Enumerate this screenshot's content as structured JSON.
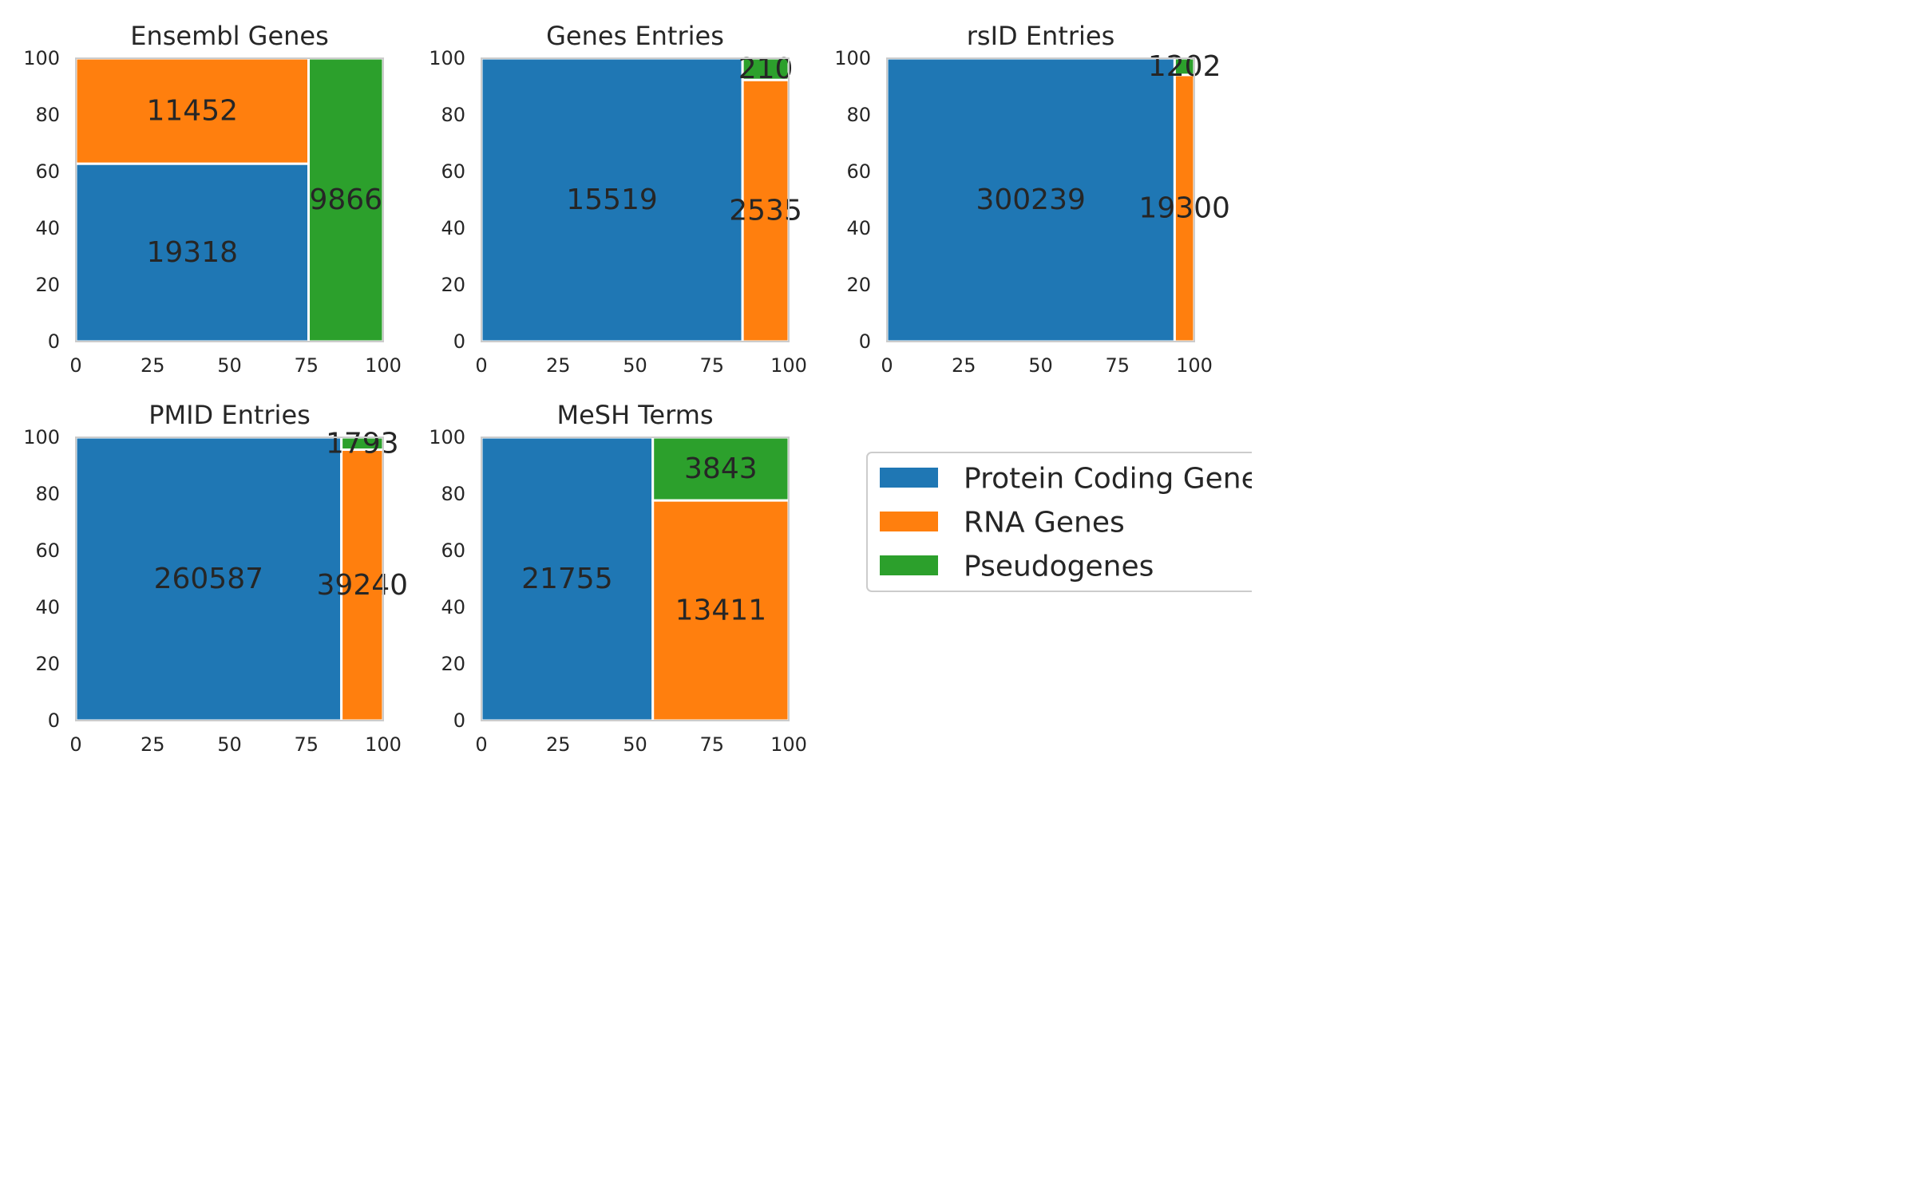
{
  "chart_data": {
    "type": "treemap",
    "categories": [
      "Protein Coding Genes",
      "RNA Genes",
      "Pseudogenes"
    ],
    "colors": {
      "Protein Coding Genes": "#1f77b4",
      "RNA Genes": "#ff7f0e",
      "Pseudogenes": "#2ca02c"
    },
    "xlim": [
      0,
      100
    ],
    "ylim": [
      0,
      100
    ],
    "xticks": [
      "0",
      "25",
      "50",
      "75",
      "100"
    ],
    "yticks": [
      "0",
      "20",
      "40",
      "60",
      "80",
      "100"
    ],
    "grid": false,
    "legend_position": "right",
    "panels": [
      {
        "title": "Ensembl Genes",
        "values": [
          19318,
          11452,
          9866
        ]
      },
      {
        "title": "Genes Entries",
        "values": [
          15519,
          2535,
          210
        ]
      },
      {
        "title": "rsID Entries",
        "values": [
          300239,
          19300,
          1202
        ]
      },
      {
        "title": "PMID Entries",
        "values": [
          260587,
          39240,
          1793
        ]
      },
      {
        "title": "MeSH Terms",
        "values": [
          21755,
          13411,
          3843
        ]
      }
    ]
  }
}
